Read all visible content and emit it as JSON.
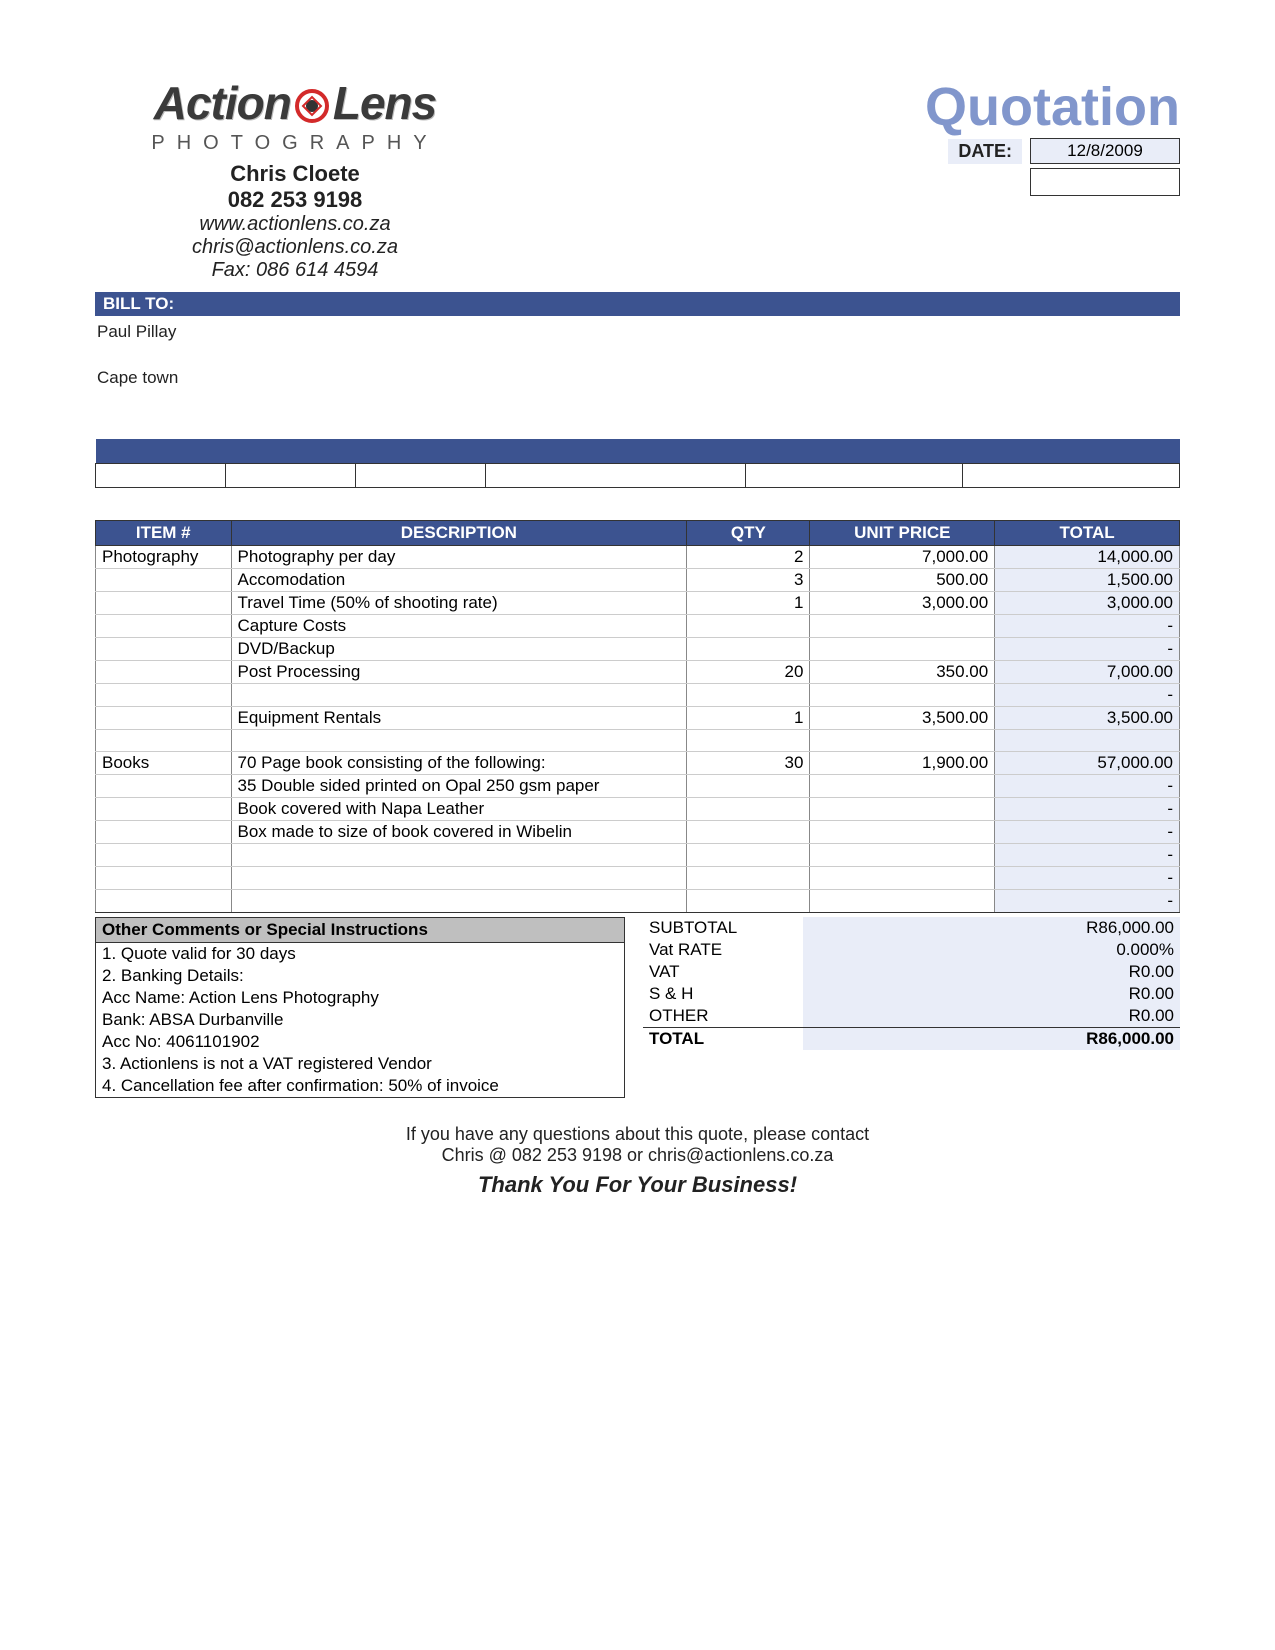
{
  "document_title": "Quotation",
  "colors": {
    "accent_dark": "#3c5390",
    "accent_light": "#e9edf8",
    "title_blue": "#8196cc",
    "comments_header_bg": "#bfbfbf",
    "logo_red": "#d32a2a",
    "border": "#333333",
    "row_border": "#cccccc"
  },
  "logo": {
    "word1": "Action",
    "word2": "Lens",
    "subtitle": "PHOTOGRAPHY"
  },
  "contact": {
    "name": "Chris Cloete",
    "phone": "082 253 9198",
    "website": "www.actionlens.co.za",
    "email": "chris@actionlens.co.za",
    "fax": "Fax: 086 614 4594"
  },
  "date_label": "DATE:",
  "date_value": "12/8/2009",
  "bill_to_label": "BILL TO:",
  "bill_to": {
    "name": "Paul Pillay",
    "line2": "",
    "city": "Cape town"
  },
  "items_header": {
    "item": "ITEM #",
    "description": "DESCRIPTION",
    "qty": "QTY",
    "unit_price": "UNIT PRICE",
    "total": "TOTAL"
  },
  "items": [
    {
      "item": "Photography",
      "desc": "Photography per day",
      "qty": "2",
      "price": "7,000.00",
      "total": "14,000.00"
    },
    {
      "item": "",
      "desc": "Accomodation",
      "qty": "3",
      "price": "500.00",
      "total": "1,500.00"
    },
    {
      "item": "",
      "desc": "Travel Time (50% of shooting rate)",
      "qty": "1",
      "price": "3,000.00",
      "total": "3,000.00"
    },
    {
      "item": "",
      "desc": "Capture Costs",
      "qty": "",
      "price": "",
      "total": "-"
    },
    {
      "item": "",
      "desc": "DVD/Backup",
      "qty": "",
      "price": "",
      "total": "-"
    },
    {
      "item": "",
      "desc": "Post Processing",
      "qty": "20",
      "price": "350.00",
      "total": "7,000.00"
    },
    {
      "item": "",
      "desc": "",
      "qty": "",
      "price": "",
      "total": "-"
    },
    {
      "item": "",
      "desc": "Equipment Rentals",
      "qty": "1",
      "price": "3,500.00",
      "total": "3,500.00"
    },
    {
      "item": "",
      "desc": "",
      "qty": "",
      "price": "",
      "total": ""
    },
    {
      "item": "Books",
      "desc": "70 Page book consisting of the following:",
      "qty": "30",
      "price": "1,900.00",
      "total": "57,000.00"
    },
    {
      "item": "",
      "desc": "35 Double sided printed on Opal 250 gsm paper",
      "qty": "",
      "price": "",
      "total": "-"
    },
    {
      "item": "",
      "desc": "Book covered with Napa Leather",
      "qty": "",
      "price": "",
      "total": "-"
    },
    {
      "item": "",
      "desc": "Box made to size of book covered in Wibelin",
      "qty": "",
      "price": "",
      "total": "-"
    },
    {
      "item": "",
      "desc": "",
      "qty": "",
      "price": "",
      "total": "-"
    },
    {
      "item": "",
      "desc": "",
      "qty": "",
      "price": "",
      "total": "-"
    },
    {
      "item": "",
      "desc": "",
      "qty": "",
      "price": "",
      "total": "-"
    }
  ],
  "comments_header": "Other Comments or Special Instructions",
  "comments": [
    "1. Quote valid for 30 days",
    "2. Banking Details:",
    "Acc Name: Action Lens Photography",
    "Bank: ABSA Durbanville",
    "Acc No: 4061101902",
    "3. Actionlens is not a VAT registered Vendor",
    "4. Cancellation fee after confirmation: 50% of invoice"
  ],
  "totals": {
    "subtotal_label": "SUBTOTAL",
    "subtotal": "R86,000.00",
    "vat_rate_label": "Vat RATE",
    "vat_rate": "0.000%",
    "vat_label": "VAT",
    "vat": "R0.00",
    "sh_label": "S & H",
    "sh": "R0.00",
    "other_label": "OTHER",
    "other": "R0.00",
    "total_label": "TOTAL",
    "total": "R86,000.00"
  },
  "footer": {
    "line1": "If you have any questions about this quote, please contact",
    "line2": "Chris @ 082 253 9198 or chris@actionlens.co.za",
    "thanks": "Thank You For Your Business!"
  }
}
